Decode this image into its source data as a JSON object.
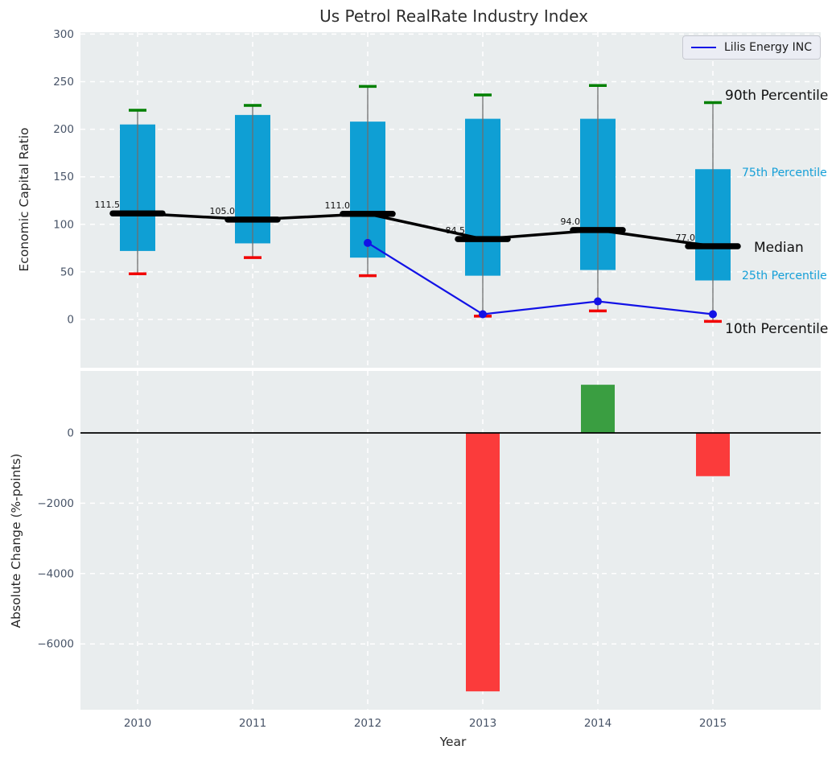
{
  "title": "Us Petrol RealRate Industry Index",
  "colors": {
    "axes_background": "#e9edee",
    "grid": "#ffffff",
    "box_fill": "#0f9fd4",
    "whisker_line": "#6e6e6e",
    "p90_cap": "#008000",
    "p10_cap": "#f10000",
    "median": "#000000",
    "company_line": "#1212e6",
    "bar_positive": "#3a9e41",
    "bar_negative": "#fb3b3b",
    "tick_label": "#485468",
    "annotation_large": "#111111",
    "annotation_small": "#16a0d8"
  },
  "chart_data": [
    {
      "type": "box",
      "title": "Us Petrol RealRate Industry Index",
      "ylabel": "Economic Capital Ratio",
      "xlabel": "",
      "ylim": [
        -50,
        302
      ],
      "yticks": [
        0,
        50,
        100,
        150,
        200,
        250,
        300
      ],
      "yticklabels": [
        "0",
        "50",
        "100",
        "150",
        "200",
        "250",
        "300"
      ],
      "categories": [
        "2010",
        "2011",
        "2012",
        "2013",
        "2014",
        "2015"
      ],
      "grid": "white-dashed",
      "legend": {
        "position": "upper right",
        "entries": [
          "Lilis Energy INC"
        ]
      },
      "boxes": [
        {
          "year": "2010",
          "p10": 48,
          "p25": 72,
          "median": 111.5,
          "p75": 205,
          "p90": 220
        },
        {
          "year": "2011",
          "p10": 65,
          "p25": 80,
          "median": 105.0,
          "p75": 215,
          "p90": 225
        },
        {
          "year": "2012",
          "p10": 46,
          "p25": 65,
          "median": 111.0,
          "p75": 208,
          "p90": 245
        },
        {
          "year": "2013",
          "p10": 3.5,
          "p25": 46,
          "median": 84.5,
          "p75": 211,
          "p90": 236
        },
        {
          "year": "2014",
          "p10": 9,
          "p25": 52,
          "median": 94.0,
          "p75": 211,
          "p90": 246
        },
        {
          "year": "2015",
          "p10": -2,
          "p25": 41,
          "median": 77.0,
          "p75": 158,
          "p90": 228
        }
      ],
      "median_labels": [
        "111.5",
        "105.0",
        "111.0",
        "84.5",
        "94.0",
        "77.0"
      ],
      "company_line": {
        "name": "Lilis Energy INC",
        "x": [
          "2012",
          "2013",
          "2014",
          "2015"
        ],
        "y": [
          80.5,
          5.5,
          19,
          5.5
        ]
      },
      "annotations": [
        {
          "text": "90th Percentile",
          "x": 901,
          "y": 124,
          "size": "lg"
        },
        {
          "text": "75th Percentile",
          "x": 922,
          "y": 219,
          "size": "sm"
        },
        {
          "text": "Median",
          "x": 937,
          "y": 313,
          "size": "lg"
        },
        {
          "text": "25th Percentile",
          "x": 922,
          "y": 347,
          "size": "sm"
        },
        {
          "text": "10th Percentile",
          "x": 901,
          "y": 414,
          "size": "lg"
        }
      ]
    },
    {
      "type": "bar",
      "title": "",
      "ylabel": "Absolute Change (%-points)",
      "xlabel": "Year",
      "ylim": [
        -7800,
        1750
      ],
      "yticks": [
        0,
        -2000,
        -4000,
        -6000
      ],
      "yticklabels": [
        "0",
        "−2000",
        "−4000",
        "−6000"
      ],
      "categories": [
        "2010",
        "2011",
        "2012",
        "2013",
        "2014",
        "2015"
      ],
      "grid": "white-dashed",
      "values": [
        null,
        null,
        null,
        -7350,
        1370,
        -1230
      ]
    }
  ]
}
